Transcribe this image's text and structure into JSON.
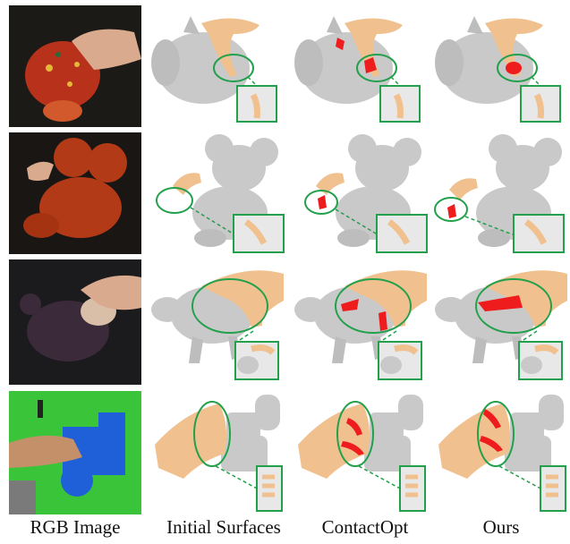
{
  "figure": {
    "column_labels": [
      "RGB Image",
      "Initial Surfaces",
      "ContactOpt",
      "Ours"
    ],
    "rows": [
      {
        "object": "plush-dog",
        "photo_bg": "#1c1a17",
        "object_color": "#b8311b"
      },
      {
        "object": "plush-mouse",
        "photo_bg": "#1a1614",
        "object_color": "#b23a17"
      },
      {
        "object": "plush-purple-bear",
        "photo_bg": "#1b1a1d",
        "object_color": "#3a2a3a"
      },
      {
        "object": "blue-toy-camera",
        "photo_bg": "#3ac43a",
        "object_color": "#1f5fd8"
      }
    ],
    "colors": {
      "mesh": "#c9c9c9",
      "hand": "#f0c18e",
      "contact": "#ee1c1c",
      "highlight": "#22a04b"
    }
  }
}
